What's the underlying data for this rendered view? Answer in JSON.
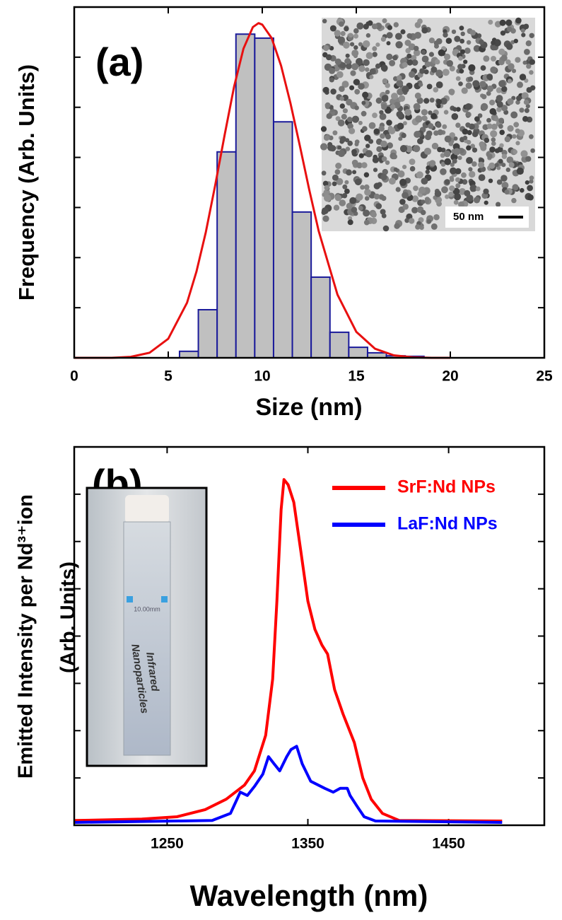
{
  "chart_data": [
    {
      "type": "histogram",
      "label": "(a)",
      "xlabel": "Size (nm)",
      "ylabel": "Frequency (Arb. Units)",
      "bins": [
        5.6,
        6.6,
        7.6,
        8.6,
        9.6,
        10.6,
        11.6,
        12.6,
        13.6,
        14.6,
        15.6,
        16.6,
        17.6,
        18.6
      ],
      "counts": [
        0.13,
        0.96,
        4.11,
        6.46,
        6.38,
        4.71,
        2.91,
        1.61,
        0.51,
        0.21,
        0.1,
        0.04,
        0.03
      ],
      "color": "#c0c0c0",
      "edge_color": "#1a1a9a",
      "fit": {
        "color": "#e81010",
        "x": [
          0,
          1,
          2,
          3,
          4,
          5,
          6,
          6.5,
          7,
          7.5,
          8,
          8.5,
          9,
          9.5,
          9.8,
          10,
          10.5,
          11,
          11.5,
          12,
          12.5,
          13,
          14,
          15,
          16,
          17,
          18,
          19,
          20
        ],
        "values": [
          0,
          0,
          0,
          0.02,
          0.1,
          0.38,
          1.1,
          1.72,
          2.51,
          3.45,
          4.45,
          5.41,
          6.17,
          6.6,
          6.68,
          6.65,
          6.38,
          5.83,
          5.08,
          4.23,
          3.35,
          2.53,
          1.26,
          0.52,
          0.18,
          0.05,
          0.01,
          0,
          0
        ]
      },
      "xlim": [
        0,
        25
      ],
      "xticks": [
        0,
        5,
        10,
        15,
        20,
        25
      ],
      "ylim": [
        0,
        7
      ],
      "yticks": [
        1,
        2,
        3,
        4,
        5,
        6
      ],
      "inset_scale_label": "50 nm"
    },
    {
      "type": "line",
      "label": "(b)",
      "xlabel": "Wavelength (nm)",
      "ylabel": [
        "Emitted Intensity per Nd³⁺ion",
        "(Arb. Units)"
      ],
      "legend": "upper right",
      "series": [
        {
          "name": "SrF:Nd NPs",
          "color": "#ff0000",
          "x": [
            1184,
            1232,
            1257,
            1277,
            1292,
            1305,
            1312,
            1320,
            1325,
            1328,
            1331,
            1333,
            1336,
            1340,
            1345,
            1350,
            1355,
            1360,
            1364,
            1369,
            1375,
            1383,
            1389,
            1395,
            1403,
            1415,
            1488
          ],
          "values": [
            0.1,
            0.13,
            0.18,
            0.33,
            0.55,
            0.85,
            1.15,
            1.9,
            3.09,
            4.74,
            6.68,
            7.31,
            7.2,
            6.83,
            5.79,
            4.74,
            4.14,
            3.81,
            3.62,
            2.87,
            2.35,
            1.75,
            1.0,
            0.55,
            0.25,
            0.1,
            0.09
          ]
        },
        {
          "name": "LaF:Nd NPs",
          "color": "#0000ff",
          "x": [
            1184,
            1282,
            1295,
            1302,
            1307,
            1312,
            1318,
            1322,
            1326,
            1330,
            1335,
            1338,
            1342,
            1346,
            1352,
            1362,
            1368,
            1373,
            1378,
            1380,
            1385,
            1390,
            1398,
            1488
          ],
          "values": [
            0.06,
            0.1,
            0.25,
            0.7,
            0.63,
            0.82,
            1.08,
            1.45,
            1.3,
            1.15,
            1.45,
            1.6,
            1.67,
            1.3,
            0.93,
            0.78,
            0.7,
            0.78,
            0.78,
            0.63,
            0.4,
            0.18,
            0.09,
            0.06
          ]
        }
      ],
      "xlim": [
        1184,
        1518
      ],
      "xticks": [
        1250,
        1350,
        1450
      ],
      "ylim": [
        0,
        8
      ],
      "yticks": [
        1,
        2,
        3,
        4,
        5,
        6,
        7
      ],
      "inset_texts": [
        "10.00mm",
        "Infrared",
        "Nanoparticles"
      ]
    }
  ]
}
